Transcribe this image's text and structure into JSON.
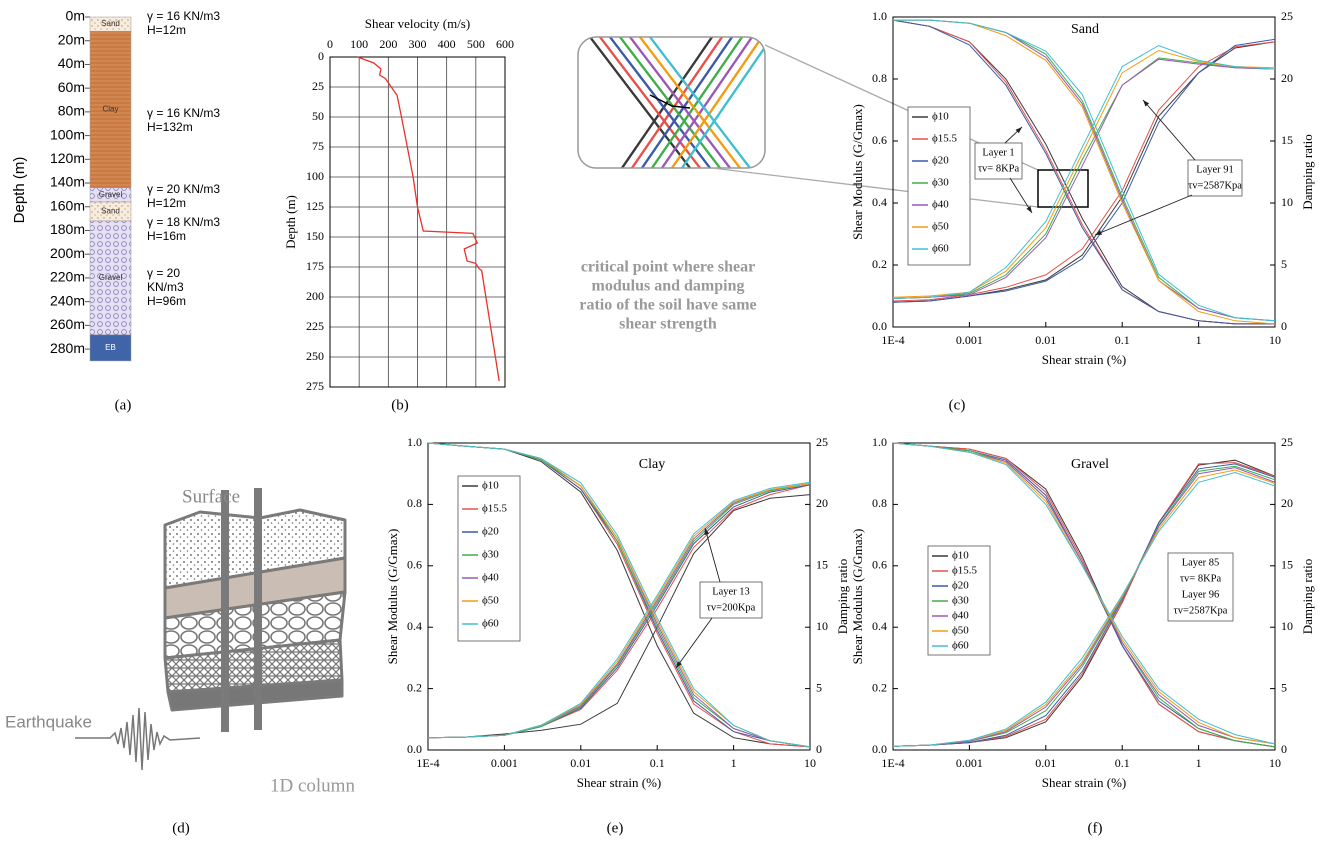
{
  "panel_labels": [
    "(a)",
    "(b)",
    "(c)",
    "(d)",
    "(e)",
    "(f)"
  ],
  "soil_column": {
    "depth_label": "Depth (m)",
    "depth_ticks": [
      {
        "value": 0,
        "label": "0m"
      },
      {
        "value": 20,
        "label": "20m"
      },
      {
        "value": 40,
        "label": "40m"
      },
      {
        "value": 60,
        "label": "60m"
      },
      {
        "value": 80,
        "label": "80m"
      },
      {
        "value": 100,
        "label": "100m"
      },
      {
        "value": 120,
        "label": "120m"
      },
      {
        "value": 140,
        "label": "140m"
      },
      {
        "value": 160,
        "label": "160m"
      },
      {
        "value": 180,
        "label": "180m"
      },
      {
        "value": 200,
        "label": "200m"
      },
      {
        "value": 220,
        "label": "220m"
      },
      {
        "value": 240,
        "label": "240m"
      },
      {
        "value": 260,
        "label": "260m"
      },
      {
        "value": 280,
        "label": "280m"
      }
    ],
    "layers": [
      {
        "name": "Sand",
        "top": 0,
        "bottom": 12,
        "annotation": [
          "γ = 16 KN/m3",
          "H=12m"
        ]
      },
      {
        "name": "Clay",
        "top": 12,
        "bottom": 144,
        "annotation": [
          "γ = 16 KN/m3",
          "H=132m"
        ]
      },
      {
        "name": "Gravel",
        "top": 144,
        "bottom": 156,
        "annotation": [
          "γ = 20 KN/m3",
          "H=12m"
        ]
      },
      {
        "name": "Sand",
        "top": 156,
        "bottom": 172,
        "annotation": [
          "γ = 18 KN/m3",
          "H=16m"
        ]
      },
      {
        "name": "Gravel",
        "top": 172,
        "bottom": 268,
        "annotation": [
          "γ = 20",
          "KN/m3",
          "H=96m"
        ]
      },
      {
        "name": "EB",
        "top": 268,
        "bottom": 290
      }
    ]
  },
  "inset_note": [
    "critical point where shear",
    "modulus and damping",
    "ratio of the soil have same",
    "shear strength"
  ],
  "diagram": {
    "surface": "Surface",
    "earthquake": "Earthquake",
    "column": "1D column"
  },
  "chart_data": [
    {
      "type": "line",
      "x_label": "Shear velocity (m/s)",
      "y_label": "Depth (m)",
      "color": "#e8322b",
      "x": [
        95,
        150,
        175,
        170,
        190,
        230,
        245,
        265,
        285,
        300,
        320,
        490,
        505,
        460,
        470,
        500,
        510,
        520,
        580
      ],
      "values": [
        0,
        5,
        10,
        15,
        18,
        32,
        50,
        75,
        100,
        125,
        145,
        147,
        155,
        160,
        170,
        172,
        176,
        178,
        270
      ],
      "xlim": [
        0,
        600
      ],
      "xticks": [
        0,
        100,
        200,
        300,
        400,
        500,
        600
      ],
      "x_axis": "top",
      "ylim": [
        0,
        275
      ],
      "yticks": [
        0,
        25,
        50,
        75,
        100,
        125,
        150,
        175,
        200,
        225,
        250,
        275
      ],
      "invert_y": true,
      "grid": true
    },
    {
      "type": "line",
      "title": "Sand",
      "x_label": "Shear strain (%)",
      "y_label": "Shear Modulus (G/Gmax)",
      "y2_label": "Damping ratio",
      "log_x": true,
      "x": [
        0.0001,
        0.0003,
        0.001,
        0.003,
        0.01,
        0.03,
        0.1,
        0.3,
        1,
        3,
        10
      ],
      "xlim": [
        0.0001,
        10
      ],
      "xticks": [
        {
          "value": 0.0001,
          "label": "1E-4"
        },
        0.001,
        0.01,
        0.1,
        1,
        10
      ],
      "ylim": [
        0,
        1
      ],
      "yticks": [
        {
          "value": 0,
          "label": "0.0"
        },
        0.2,
        0.4,
        0.6,
        0.8,
        {
          "value": 1,
          "label": "1.0"
        }
      ],
      "y2lim": [
        0,
        25
      ],
      "y2ticks": [
        0,
        5,
        10,
        15,
        20,
        25
      ],
      "series": [
        {
          "name": "ϕ10",
          "color": "#3a3a3a",
          "values": [
            0.99,
            0.97,
            0.92,
            0.8,
            0.59,
            0.35,
            0.13,
            0.05,
            0.02,
            0.01,
            0.01
          ],
          "y2_values": [
            2.0,
            2.1,
            2.5,
            3.0,
            3.8,
            5.8,
            10.5,
            17,
            20.5,
            22.5,
            23
          ]
        },
        {
          "name": "ϕ15.5",
          "color": "#e8504a",
          "values": [
            0.99,
            0.97,
            0.92,
            0.79,
            0.57,
            0.33,
            0.12,
            0.05,
            0.02,
            0.01,
            0.01
          ],
          "y2_values": [
            2.1,
            2.2,
            2.6,
            3.2,
            4.2,
            6.3,
            11,
            17.5,
            21,
            22.6,
            23
          ]
        },
        {
          "name": "ϕ20",
          "color": "#3b5ba9",
          "values": [
            0.99,
            0.97,
            0.91,
            0.78,
            0.56,
            0.32,
            0.12,
            0.05,
            0.02,
            0.01,
            0.01
          ],
          "y2_values": [
            2.0,
            2.1,
            2.5,
            2.9,
            3.7,
            5.5,
            10,
            16.5,
            20.5,
            22.7,
            23.2
          ]
        },
        {
          "name": "ϕ30",
          "color": "#3fae49",
          "values": [
            0.99,
            0.99,
            0.98,
            0.95,
            0.88,
            0.73,
            0.42,
            0.16,
            0.06,
            0.03,
            0.02
          ],
          "y2_values": [
            2.3,
            2.4,
            2.7,
            4.2,
            7.5,
            13.5,
            19.5,
            21.7,
            21.3,
            20.9,
            20.8
          ]
        },
        {
          "name": "ϕ40",
          "color": "#9b59b6",
          "values": [
            0.99,
            0.99,
            0.98,
            0.95,
            0.87,
            0.72,
            0.41,
            0.15,
            0.06,
            0.03,
            0.02
          ],
          "y2_values": [
            2.3,
            2.4,
            2.6,
            4.0,
            7.2,
            13,
            19.5,
            21.6,
            21.2,
            20.9,
            20.8
          ]
        },
        {
          "name": "ϕ50",
          "color": "#f39c12",
          "values": [
            0.99,
            0.99,
            0.98,
            0.94,
            0.86,
            0.71,
            0.4,
            0.15,
            0.05,
            0.02,
            0.01
          ],
          "y2_values": [
            2.4,
            2.5,
            2.8,
            4.5,
            8,
            14,
            20.5,
            22.3,
            21.4,
            21,
            20.9
          ]
        },
        {
          "name": "ϕ60",
          "color": "#3fbfd0",
          "values": [
            0.99,
            0.99,
            0.98,
            0.95,
            0.89,
            0.75,
            0.44,
            0.17,
            0.07,
            0.03,
            0.02
          ],
          "y2_values": [
            2.3,
            2.4,
            2.8,
            4.8,
            8.5,
            14.5,
            21,
            22.7,
            21.5,
            21,
            20.8
          ]
        }
      ],
      "annotations": [
        [
          "Layer 1",
          "τv= 8KPa"
        ],
        [
          "Layer 91",
          "τv=2587Kpa"
        ]
      ]
    },
    {
      "type": "line",
      "title": "Clay",
      "x_label": "Shear strain (%)",
      "y_label": "Shear Modulus (G/Gmax)",
      "y2_label": "Damping ratio",
      "log_x": true,
      "x": [
        0.0001,
        0.0003,
        0.001,
        0.003,
        0.01,
        0.03,
        0.1,
        0.3,
        1,
        3,
        10
      ],
      "xlim": [
        0.0001,
        10
      ],
      "xticks": [
        {
          "value": 0.0001,
          "label": "1E-4"
        },
        0.001,
        0.01,
        0.1,
        1,
        10
      ],
      "ylim": [
        0,
        1
      ],
      "yticks": [
        {
          "value": 0,
          "label": "0.0"
        },
        0.2,
        0.4,
        0.6,
        0.8,
        {
          "value": 1,
          "label": "1.0"
        }
      ],
      "y2lim": [
        0,
        25
      ],
      "y2ticks": [
        0,
        5,
        10,
        15,
        20,
        25
      ],
      "series": [
        {
          "name": "ϕ10",
          "color": "#3a3a3a",
          "values": [
            1.0,
            0.99,
            0.98,
            0.94,
            0.84,
            0.65,
            0.34,
            0.12,
            0.04,
            0.02,
            0.01
          ],
          "y2_values": [
            1.0,
            1.05,
            1.3,
            1.6,
            2.1,
            3.8,
            10,
            16,
            19.5,
            20.5,
            20.8
          ]
        },
        {
          "name": "ϕ15.5",
          "color": "#e8504a",
          "values": [
            1.0,
            0.99,
            0.98,
            0.945,
            0.85,
            0.67,
            0.38,
            0.15,
            0.06,
            0.02,
            0.01
          ],
          "y2_values": [
            1.0,
            1.05,
            1.2,
            1.9,
            3.3,
            6.5,
            11.5,
            16.5,
            19.6,
            20.8,
            21.6
          ]
        },
        {
          "name": "ϕ20",
          "color": "#3b5ba9",
          "values": [
            1.0,
            0.99,
            0.98,
            0.945,
            0.85,
            0.68,
            0.39,
            0.16,
            0.06,
            0.03,
            0.01
          ],
          "y2_values": [
            1.0,
            1.05,
            1.2,
            1.9,
            3.4,
            6.7,
            11.8,
            16.8,
            19.8,
            21,
            21.6
          ]
        },
        {
          "name": "ϕ30",
          "color": "#3fae49",
          "values": [
            1.0,
            0.99,
            0.98,
            0.945,
            0.86,
            0.68,
            0.4,
            0.17,
            0.07,
            0.03,
            0.01
          ],
          "y2_values": [
            1.0,
            1.05,
            1.2,
            1.9,
            3.5,
            6.9,
            12,
            17,
            20,
            21.1,
            21.7
          ]
        },
        {
          "name": "ϕ40",
          "color": "#9b59b6",
          "values": [
            1.0,
            0.99,
            0.98,
            0.95,
            0.86,
            0.69,
            0.41,
            0.18,
            0.07,
            0.03,
            0.01
          ],
          "y2_values": [
            1.0,
            1.05,
            1.2,
            2.0,
            3.6,
            7.0,
            12.2,
            17.2,
            20.1,
            21.2,
            21.7
          ]
        },
        {
          "name": "ϕ50",
          "color": "#f39c12",
          "values": [
            1.0,
            0.99,
            0.98,
            0.95,
            0.86,
            0.69,
            0.42,
            0.19,
            0.08,
            0.03,
            0.01
          ],
          "y2_values": [
            1.0,
            1.05,
            1.2,
            2.0,
            3.7,
            7.2,
            12.4,
            17.4,
            20.2,
            21.2,
            21.7
          ]
        },
        {
          "name": "ϕ60",
          "color": "#3fbfd0",
          "values": [
            1.0,
            0.99,
            0.98,
            0.95,
            0.87,
            0.7,
            0.43,
            0.2,
            0.08,
            0.03,
            0.01
          ],
          "y2_values": [
            1.0,
            1.05,
            1.2,
            2.0,
            3.8,
            7.4,
            12.6,
            17.6,
            20.3,
            21.3,
            21.8
          ]
        }
      ],
      "annotations": [
        [
          "Layer 13",
          "τv=200Kpa"
        ]
      ]
    },
    {
      "type": "line",
      "title": "Gravel",
      "x_label": "Shear strain (%)",
      "y_label": "Shear Modulus (G/Gmax)",
      "y2_label": "Damping ratio",
      "log_x": true,
      "x": [
        0.0001,
        0.0003,
        0.001,
        0.003,
        0.01,
        0.03,
        0.1,
        0.3,
        1,
        3,
        10
      ],
      "xlim": [
        0.0001,
        10
      ],
      "xticks": [
        {
          "value": 0.0001,
          "label": "1E-4"
        },
        0.001,
        0.01,
        0.1,
        1,
        10
      ],
      "ylim": [
        0,
        1
      ],
      "yticks": [
        {
          "value": 0,
          "label": "0.0"
        },
        0.2,
        0.4,
        0.6,
        0.8,
        {
          "value": 1,
          "label": "1.0"
        }
      ],
      "y2lim": [
        0,
        25
      ],
      "y2ticks": [
        0,
        5,
        10,
        15,
        20,
        25
      ],
      "series": [
        {
          "name": "ϕ10",
          "color": "#3a3a3a",
          "values": [
            1.0,
            0.99,
            0.98,
            0.95,
            0.85,
            0.63,
            0.34,
            0.15,
            0.06,
            0.03,
            0.01
          ],
          "y2_values": [
            0.3,
            0.4,
            0.6,
            1.0,
            2.3,
            6.0,
            12,
            18.5,
            23.2,
            23.6,
            22.3
          ]
        },
        {
          "name": "ϕ15.5",
          "color": "#e8504a",
          "values": [
            1.0,
            0.99,
            0.98,
            0.95,
            0.84,
            0.62,
            0.34,
            0.15,
            0.06,
            0.03,
            0.01
          ],
          "y2_values": [
            0.3,
            0.4,
            0.6,
            1.1,
            2.5,
            6.2,
            12,
            18.5,
            23.3,
            23.4,
            22.3
          ]
        },
        {
          "name": "ϕ20",
          "color": "#3b5ba9",
          "values": [
            1.0,
            0.99,
            0.975,
            0.945,
            0.83,
            0.61,
            0.34,
            0.16,
            0.07,
            0.03,
            0.01
          ],
          "y2_values": [
            0.3,
            0.4,
            0.6,
            1.2,
            2.8,
            6.4,
            12.2,
            18.5,
            22.9,
            23.3,
            22.2
          ]
        },
        {
          "name": "ϕ30",
          "color": "#3fae49",
          "values": [
            1.0,
            0.99,
            0.975,
            0.94,
            0.82,
            0.61,
            0.35,
            0.17,
            0.07,
            0.03,
            0.01
          ],
          "y2_values": [
            0.3,
            0.4,
            0.7,
            1.4,
            3.2,
            6.8,
            12.3,
            18.3,
            22.7,
            23.1,
            22
          ]
        },
        {
          "name": "ϕ40",
          "color": "#9b59b6",
          "values": [
            1.0,
            0.99,
            0.97,
            0.94,
            0.82,
            0.61,
            0.35,
            0.18,
            0.08,
            0.04,
            0.02
          ],
          "y2_values": [
            0.3,
            0.4,
            0.7,
            1.5,
            3.5,
            7.0,
            12.4,
            18.2,
            22.5,
            23,
            21.8
          ]
        },
        {
          "name": "ϕ50",
          "color": "#f39c12",
          "values": [
            1.0,
            0.99,
            0.97,
            0.935,
            0.81,
            0.6,
            0.36,
            0.19,
            0.09,
            0.04,
            0.02
          ],
          "y2_values": [
            0.3,
            0.4,
            0.8,
            1.6,
            3.7,
            7.2,
            12.5,
            18,
            22.2,
            22.8,
            21.7
          ]
        },
        {
          "name": "ϕ60",
          "color": "#3fbfd0",
          "values": [
            1.0,
            0.99,
            0.97,
            0.93,
            0.8,
            0.6,
            0.37,
            0.2,
            0.1,
            0.05,
            0.02
          ],
          "y2_values": [
            0.3,
            0.4,
            0.8,
            1.7,
            3.9,
            7.5,
            12.6,
            17.8,
            21.8,
            22.6,
            21.5
          ]
        }
      ],
      "annotations": [
        [
          "Layer 85",
          "τv= 8KPa",
          "Layer 96",
          "τv=2587Kpa"
        ]
      ]
    }
  ]
}
